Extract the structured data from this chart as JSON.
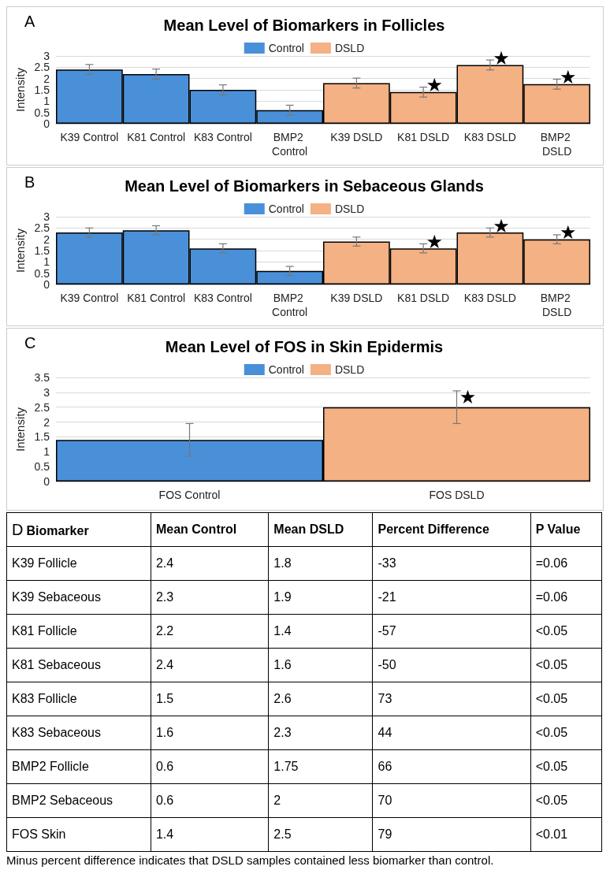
{
  "chart_data": [
    {
      "type": "bar",
      "title": "Mean Level of Biomarkers in Follicles",
      "ylabel": "Intensity",
      "categories": [
        "K39 Control",
        "K81 Control",
        "K83 Control",
        "BMP2 Control",
        "K39 DSLD",
        "K81 DSLD",
        "K83 DSLD",
        "BMP2 DSLD"
      ],
      "series": [
        {
          "name": "Control",
          "color": "#4a90d9",
          "values": [
            2.4,
            2.2,
            1.5,
            0.6,
            null,
            null,
            null,
            null
          ],
          "errors": [
            0.22,
            0.22,
            0.22,
            0.22,
            null,
            null,
            null,
            null
          ]
        },
        {
          "name": "DSLD",
          "color": "#f4b183",
          "values": [
            null,
            null,
            null,
            null,
            1.8,
            1.4,
            2.6,
            1.75
          ],
          "errors": [
            null,
            null,
            null,
            null,
            0.22,
            0.22,
            0.22,
            0.22
          ]
        }
      ],
      "ylim": [
        0,
        3
      ],
      "yticks": [
        0,
        0.5,
        1,
        1.5,
        2,
        2.5,
        3
      ],
      "grid": "y",
      "legend": "top",
      "annotations": [
        "A",
        {
          "text": "★",
          "x": "K81 DSLD",
          "y": 1.72
        },
        {
          "text": "★",
          "x": "K83 DSLD",
          "y": 2.88
        },
        {
          "text": "★",
          "x": "BMP2 DSLD",
          "y": 2.05
        }
      ]
    },
    {
      "type": "bar",
      "title": "Mean Level of Biomarkers in Sebaceous Glands",
      "ylabel": "Intensity",
      "categories": [
        "K39 Control",
        "K81 Control",
        "K83 Control",
        "BMP2 Control",
        "K39 DSLD",
        "K81 DSLD",
        "K83 DSLD",
        "BMP2 DSLD"
      ],
      "series": [
        {
          "name": "Control",
          "color": "#4a90d9",
          "values": [
            2.3,
            2.4,
            1.6,
            0.6,
            null,
            null,
            null,
            null
          ],
          "errors": [
            0.2,
            0.2,
            0.2,
            0.2,
            null,
            null,
            null,
            null
          ]
        },
        {
          "name": "DSLD",
          "color": "#f4b183",
          "values": [
            null,
            null,
            null,
            null,
            1.9,
            1.6,
            2.3,
            2.0
          ],
          "errors": [
            null,
            null,
            null,
            null,
            0.2,
            0.2,
            0.2,
            0.2
          ]
        }
      ],
      "ylim": [
        0,
        3
      ],
      "yticks": [
        0,
        0.5,
        1,
        1.5,
        2,
        2.5,
        3
      ],
      "grid": "y",
      "legend": "top",
      "annotations": [
        "B",
        {
          "text": "★",
          "x": "K81 DSLD",
          "y": 1.9
        },
        {
          "text": "★",
          "x": "K83 DSLD",
          "y": 2.57
        },
        {
          "text": "★",
          "x": "BMP2 DSLD",
          "y": 2.3
        }
      ]
    },
    {
      "type": "bar",
      "title": "Mean Level of FOS in Skin Epidermis",
      "ylabel": "Intensity",
      "categories": [
        "FOS Control",
        "FOS DSLD"
      ],
      "series": [
        {
          "name": "Control",
          "color": "#4a90d9",
          "values": [
            1.4,
            null
          ],
          "errors": [
            0.55,
            null
          ]
        },
        {
          "name": "DSLD",
          "color": "#f4b183",
          "values": [
            null,
            2.5
          ],
          "errors": [
            null,
            0.55
          ]
        }
      ],
      "ylim": [
        0,
        3.5
      ],
      "yticks": [
        0,
        0.5,
        1,
        1.5,
        2,
        2.5,
        3,
        3.5
      ],
      "grid": "y",
      "legend": "top",
      "annotations": [
        "C",
        {
          "text": "★",
          "x": "FOS DSLD",
          "y": 2.85
        }
      ]
    },
    {
      "type": "other",
      "title": "D",
      "categories": [
        "Biomarker",
        "Mean Control",
        "Mean DSLD",
        "Percent Difference",
        "P Value"
      ],
      "y_categories": [
        "K39 Follicle",
        "K39 Sebaceous",
        "K81 Follicle",
        "K81 Sebaceous",
        "K83 Follicle",
        "K83 Sebaceous",
        "BMP2 Follicle",
        "BMP2 Sebaceous",
        "FOS Skin"
      ],
      "cell_labels": [
        [
          "2.4",
          "1.8",
          "-33",
          "=0.06"
        ],
        [
          "2.3",
          "1.9",
          "-21",
          "=0.06"
        ],
        [
          "2.2",
          "1.4",
          "-57",
          "<0.05"
        ],
        [
          "2.4",
          "1.6",
          "-50",
          "<0.05"
        ],
        [
          "1.5",
          "2.6",
          "73",
          "<0.05"
        ],
        [
          "1.6",
          "2.3",
          "44",
          "<0.05"
        ],
        [
          "0.6",
          "1.75",
          "66",
          "<0.05"
        ],
        [
          "0.6",
          "2",
          "70",
          "<0.05"
        ],
        [
          "1.4",
          "2.5",
          "79",
          "<0.01"
        ]
      ],
      "annotations": [
        "Minus percent difference indicates that DSLD samples contained less biomarker than control."
      ]
    }
  ]
}
